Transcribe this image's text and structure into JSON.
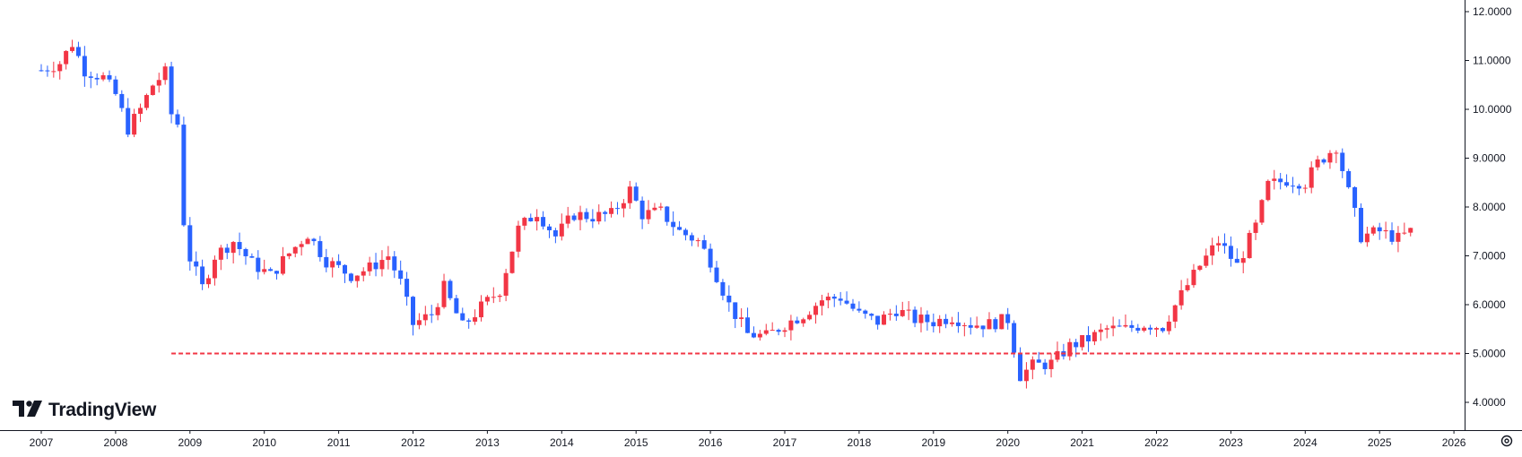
{
  "chart_data": {
    "type": "candlestick",
    "interval": "monthly",
    "x_tick_labels": [
      "2007",
      "2008",
      "2009",
      "2010",
      "2011",
      "2012",
      "2013",
      "2014",
      "2015",
      "2016",
      "2017",
      "2018",
      "2019",
      "2020",
      "2021",
      "2022",
      "2023",
      "2024",
      "2025",
      "2026"
    ],
    "y_tick_labels": [
      "12.0000",
      "11.0000",
      "10.0000",
      "9.0000",
      "8.0000",
      "7.0000",
      "6.0000",
      "5.0000",
      "4.0000"
    ],
    "ylim": [
      3.55,
      12.2
    ],
    "xlim": [
      "2006-11",
      "2026-02"
    ],
    "up_color": "#f23645",
    "down_color": "#2962ff",
    "series": [
      {
        "name": "",
        "anchors": [
          [
            "2007-01",
            10.8
          ],
          [
            "2007-04",
            10.95
          ],
          [
            "2007-06",
            11.35
          ],
          [
            "2007-08",
            10.8
          ],
          [
            "2007-11",
            10.65
          ],
          [
            "2008-01",
            10.3
          ],
          [
            "2008-03",
            9.6
          ],
          [
            "2008-05",
            10.0
          ],
          [
            "2008-07",
            10.5
          ],
          [
            "2008-09",
            10.75
          ],
          [
            "2008-10",
            9.9
          ],
          [
            "2008-11",
            9.7
          ],
          [
            "2008-12",
            7.7
          ],
          [
            "2009-01",
            6.95
          ],
          [
            "2009-03",
            6.35
          ],
          [
            "2009-05",
            7.0
          ],
          [
            "2009-08",
            7.3
          ],
          [
            "2009-11",
            6.85
          ],
          [
            "2010-02",
            6.6
          ],
          [
            "2010-05",
            7.05
          ],
          [
            "2010-08",
            7.45
          ],
          [
            "2010-11",
            6.9
          ],
          [
            "2011-03",
            6.6
          ],
          [
            "2011-06",
            6.75
          ],
          [
            "2011-09",
            7.0
          ],
          [
            "2011-11",
            6.45
          ],
          [
            "2012-01",
            5.6
          ],
          [
            "2012-04",
            5.8
          ],
          [
            "2012-06",
            6.35
          ],
          [
            "2012-09",
            5.55
          ],
          [
            "2012-12",
            5.95
          ],
          [
            "2013-03",
            6.3
          ],
          [
            "2013-06",
            7.55
          ],
          [
            "2013-09",
            7.9
          ],
          [
            "2013-12",
            7.4
          ],
          [
            "2014-03",
            7.85
          ],
          [
            "2014-06",
            7.8
          ],
          [
            "2014-09",
            7.85
          ],
          [
            "2014-12",
            8.35
          ],
          [
            "2015-02",
            7.85
          ],
          [
            "2015-05",
            7.9
          ],
          [
            "2015-08",
            7.5
          ],
          [
            "2015-11",
            7.3
          ],
          [
            "2016-01",
            6.9
          ],
          [
            "2016-04",
            6.0
          ],
          [
            "2016-07",
            5.4
          ],
          [
            "2016-10",
            5.35
          ],
          [
            "2017-01",
            5.6
          ],
          [
            "2017-04",
            5.8
          ],
          [
            "2017-07",
            6.1
          ],
          [
            "2017-10",
            6.15
          ],
          [
            "2018-01",
            5.8
          ],
          [
            "2018-04",
            5.65
          ],
          [
            "2018-07",
            5.9
          ],
          [
            "2018-10",
            5.7
          ],
          [
            "2019-01",
            5.65
          ],
          [
            "2019-04",
            5.75
          ],
          [
            "2019-07",
            5.6
          ],
          [
            "2019-10",
            5.6
          ],
          [
            "2020-01",
            5.7
          ],
          [
            "2020-03",
            4.55
          ],
          [
            "2020-05",
            4.75
          ],
          [
            "2020-08",
            4.8
          ],
          [
            "2020-11",
            5.15
          ],
          [
            "2021-02",
            5.3
          ],
          [
            "2021-05",
            5.5
          ],
          [
            "2021-08",
            5.5
          ],
          [
            "2021-11",
            5.6
          ],
          [
            "2022-02",
            5.55
          ],
          [
            "2022-05",
            6.2
          ],
          [
            "2022-08",
            6.8
          ],
          [
            "2022-11",
            7.3
          ],
          [
            "2023-02",
            6.8
          ],
          [
            "2023-05",
            7.6
          ],
          [
            "2023-07",
            8.45
          ],
          [
            "2023-10",
            8.55
          ],
          [
            "2024-01",
            8.5
          ],
          [
            "2024-03",
            8.9
          ],
          [
            "2024-06",
            9.25
          ],
          [
            "2024-08",
            8.3
          ],
          [
            "2024-10",
            7.4
          ],
          [
            "2025-01",
            7.5
          ],
          [
            "2025-04",
            7.35
          ],
          [
            "2025-06",
            7.5
          ]
        ]
      }
    ],
    "reference_line": {
      "value": 5.0,
      "from": "2008-10",
      "to": "2026-02",
      "color": "#f23645",
      "style": "dashed"
    },
    "grid": false
  },
  "brand": {
    "name": "TradingView",
    "logo_icon": "tradingview-logo-icon"
  },
  "toolbar": {
    "settings_icon": "settings-gear-icon"
  }
}
